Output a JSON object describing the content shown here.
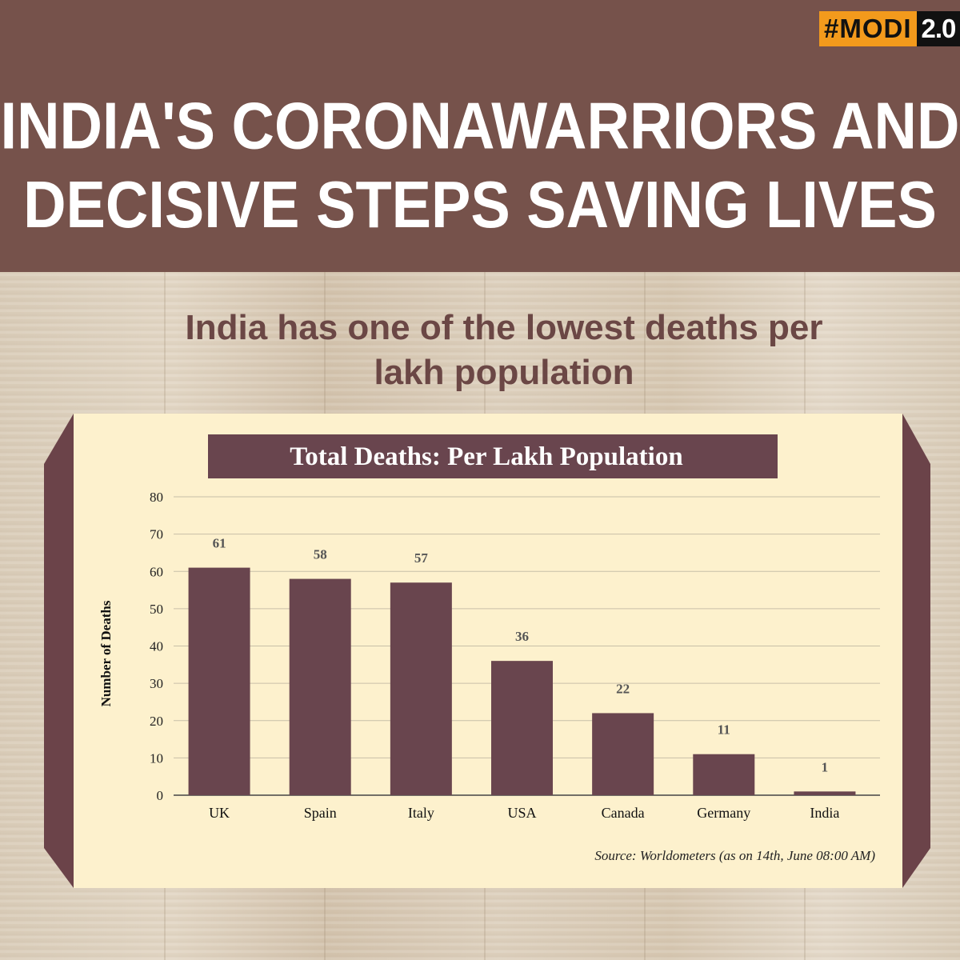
{
  "badge": {
    "hash_label": "#MODI",
    "version_label": "2.0"
  },
  "header": {
    "headline_line1": "INDIA'S CORONAWARRIORS AND",
    "headline_line2": "DECISIVE STEPS SAVING LIVES"
  },
  "subheading": {
    "line1": "India has one of the lowest deaths per",
    "line2": "lakh population"
  },
  "colors": {
    "header_bg": "#76524b",
    "panel_bg": "#fdf1cd",
    "bar": "#69454e",
    "frame": "#6b4349",
    "subhead_text": "#6b4745",
    "badge_orange": "#f39a1c"
  },
  "chart_data": {
    "type": "bar",
    "title": "Total Deaths: Per Lakh Population",
    "ylabel": "Number of Deaths",
    "xlabel": "",
    "categories": [
      "UK",
      "Spain",
      "Italy",
      "USA",
      "Canada",
      "Germany",
      "India"
    ],
    "values": [
      61,
      58,
      57,
      36,
      22,
      11,
      1
    ],
    "data_labels": [
      "61",
      "58",
      "57",
      "36",
      "22",
      "11",
      "1"
    ],
    "ylim": [
      0,
      80
    ],
    "yticks": [
      "0",
      "10",
      "20",
      "30",
      "40",
      "50",
      "60",
      "70",
      "80"
    ],
    "grid": true,
    "source": "Source: Worldometers (as on 14th, June 08:00 AM)"
  }
}
